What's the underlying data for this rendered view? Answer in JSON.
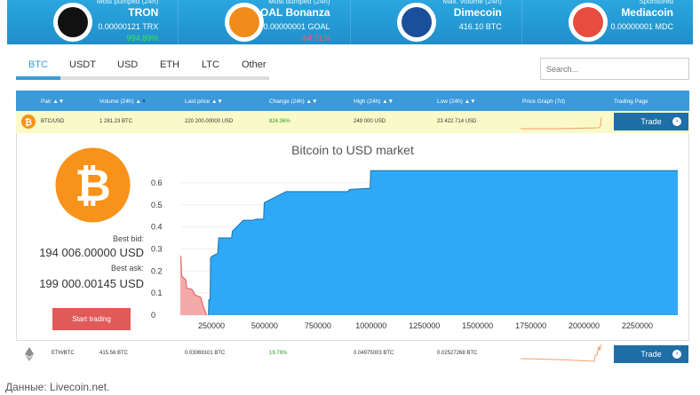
{
  "banner": [
    {
      "caption": "Most pumped (24h)",
      "name": "TRON",
      "price": "0.00000121 TRX",
      "change": "994.89%",
      "change_color": "#3ee83e",
      "icon": "tron-logo-icon"
    },
    {
      "caption": "Most dumped (24h)",
      "name": "GOAL Bonanza",
      "price": "0.00000001 GOAL",
      "change": "-64.71%",
      "change_color": "#ff5a5a",
      "icon": "goal-logo-icon"
    },
    {
      "caption": "Max. volume (24h)",
      "name": "Dimecoin",
      "price": "416.10 BTC",
      "change": "",
      "icon": "dimecoin-logo-icon"
    },
    {
      "caption": "Sponsored",
      "name": "Mediacoin",
      "price": "0.00000001 MDC",
      "change": "",
      "icon": "mediacoin-logo-icon"
    }
  ],
  "tabs": [
    "BTC",
    "USDT",
    "USD",
    "ETH",
    "LTC",
    "Other"
  ],
  "active_tab": "BTC",
  "search": {
    "placeholder": "Search..."
  },
  "table": {
    "headers": [
      "Pair",
      "Volume (24h)",
      "Last price",
      "Change (24h)",
      "High (24h)",
      "Low (24h)",
      "Price Graph (7d)",
      "Trading Page"
    ],
    "rows": [
      {
        "pair": "BTC/USD",
        "volume": "1 281.23 BTC",
        "last": "220 200.00000 USD",
        "change": "824.36%",
        "high": "249 000 USD",
        "low": "23 422.714 USD",
        "trade": "Trade"
      },
      {
        "pair": "ETH/BTC",
        "volume": "415.56 BTC",
        "last": "0.03069101 BTC",
        "change": "19.76%",
        "high": "0.04975003 BTC",
        "low": "0.02527268 BTC",
        "trade": "Trade"
      }
    ]
  },
  "detail": {
    "best_bid_label": "Best bid:",
    "best_bid": "194 006.00000 USD",
    "best_ask_label": "Best ask:",
    "best_ask": "199 000.00145 USD",
    "start_trading": "Start trading"
  },
  "chart_data": {
    "type": "area",
    "title": "Bitcoin to USD market",
    "xlim": [
      104000,
      2440000
    ],
    "ylim": [
      0,
      0.66
    ],
    "xticks": [
      "250000",
      "500000",
      "750000",
      "1000000",
      "1250000",
      "1500000",
      "1750000",
      "2000000",
      "2250000"
    ],
    "yticks": [
      "0",
      "0.1",
      "0.2",
      "0.3",
      "0.4",
      "0.5",
      "0.6"
    ],
    "grid": true,
    "series": [
      {
        "color": "#f4a9a9",
        "line": "#e05a5a",
        "points": [
          [
            104000,
            0.27
          ],
          [
            107000,
            0.26
          ],
          [
            110000,
            0.18
          ],
          [
            118000,
            0.17
          ],
          [
            130000,
            0.16
          ],
          [
            135000,
            0.12
          ],
          [
            150000,
            0.12
          ],
          [
            160000,
            0.115
          ],
          [
            175000,
            0.09
          ],
          [
            190000,
            0.085
          ],
          [
            200000,
            0.08
          ],
          [
            215000,
            0.03
          ],
          [
            228000,
            0
          ]
        ]
      },
      {
        "color": "#2ea9f7",
        "line": "#1f6fa8",
        "points": [
          [
            236000,
            0
          ],
          [
            238000,
            0.07
          ],
          [
            244000,
            0.07
          ],
          [
            246000,
            0.26
          ],
          [
            258000,
            0.27
          ],
          [
            280000,
            0.28
          ],
          [
            284000,
            0.35
          ],
          [
            345000,
            0.35
          ],
          [
            348000,
            0.38
          ],
          [
            400000,
            0.43
          ],
          [
            445000,
            0.43
          ],
          [
            460000,
            0.435
          ],
          [
            495000,
            0.435
          ],
          [
            498000,
            0.51
          ],
          [
            600000,
            0.56
          ],
          [
            890000,
            0.56
          ],
          [
            900000,
            0.57
          ],
          [
            995000,
            0.575
          ],
          [
            998000,
            0.655
          ],
          [
            2440000,
            0.655
          ]
        ]
      }
    ]
  },
  "footer": "Данные: Livecoin.net."
}
